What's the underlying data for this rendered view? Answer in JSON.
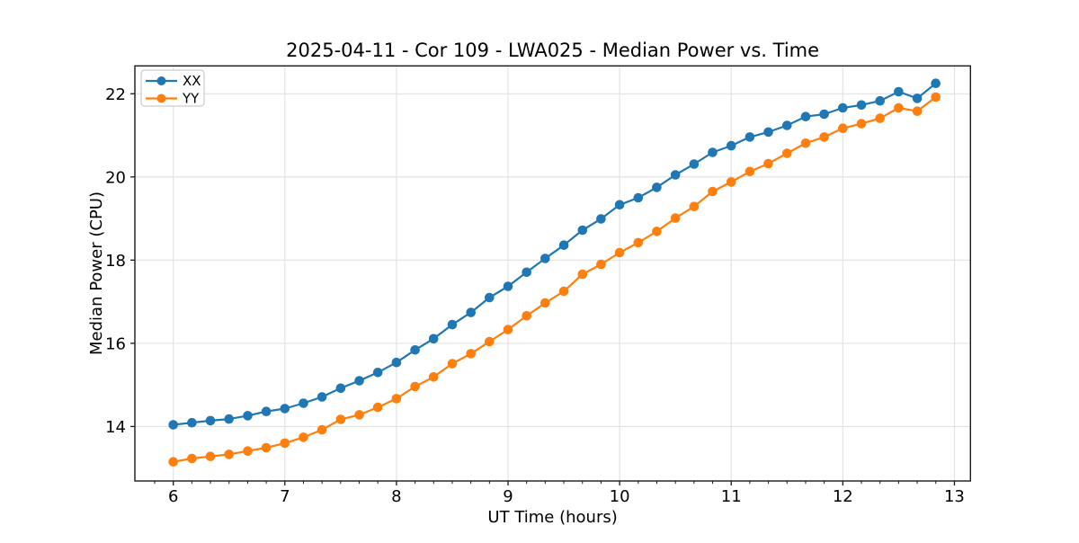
{
  "chart_data": {
    "type": "line",
    "title": "2025-04-11 - Cor 109 - LWA025 - Median Power vs. Time",
    "xlabel": "UT Time (hours)",
    "ylabel": "Median Power (CPU)",
    "x": [
      6.0,
      6.167,
      6.333,
      6.5,
      6.667,
      6.833,
      7.0,
      7.167,
      7.333,
      7.5,
      7.667,
      7.833,
      8.0,
      8.167,
      8.333,
      8.5,
      8.667,
      8.833,
      9.0,
      9.167,
      9.333,
      9.5,
      9.667,
      9.833,
      10.0,
      10.167,
      10.333,
      10.5,
      10.667,
      10.833,
      11.0,
      11.167,
      11.333,
      11.5,
      11.667,
      11.833,
      12.0,
      12.167,
      12.333,
      12.5,
      12.667,
      12.833
    ],
    "series": [
      {
        "name": "XX",
        "color": "#1f77b4",
        "marker": "circle",
        "values": [
          14.04,
          14.09,
          14.14,
          14.18,
          14.26,
          14.36,
          14.43,
          14.56,
          14.71,
          14.92,
          15.1,
          15.3,
          15.54,
          15.84,
          16.11,
          16.45,
          16.74,
          17.1,
          17.37,
          17.71,
          18.04,
          18.36,
          18.72,
          18.99,
          19.33,
          19.5,
          19.75,
          20.05,
          20.31,
          20.59,
          20.75,
          20.96,
          21.08,
          21.24,
          21.45,
          21.51,
          21.66,
          21.73,
          21.83,
          22.05,
          21.89,
          22.25
        ]
      },
      {
        "name": "YY",
        "color": "#ff7f0e",
        "marker": "circle",
        "values": [
          13.15,
          13.23,
          13.28,
          13.33,
          13.41,
          13.49,
          13.6,
          13.74,
          13.92,
          14.17,
          14.28,
          14.46,
          14.67,
          14.96,
          15.19,
          15.51,
          15.75,
          16.04,
          16.33,
          16.66,
          16.97,
          17.25,
          17.66,
          17.9,
          18.18,
          18.42,
          18.69,
          19.01,
          19.29,
          19.65,
          19.88,
          20.13,
          20.32,
          20.57,
          20.81,
          20.96,
          21.17,
          21.28,
          21.41,
          21.66,
          21.58,
          21.92
        ]
      }
    ],
    "xlim": [
      5.656,
      13.144
    ],
    "ylim": [
      12.69,
      22.67
    ],
    "xticks": [
      6,
      7,
      8,
      9,
      10,
      11,
      12,
      13
    ],
    "yticks": [
      14,
      16,
      18,
      20,
      22
    ],
    "x_minor_step": 0.16667,
    "grid": true,
    "legend_position": "upper-left",
    "colors": {
      "grid": "#e1e1e1",
      "spine": "#1a1a1a",
      "tick": "#1a1a1a",
      "legend_border": "#cccccc",
      "background": "#ffffff"
    }
  }
}
